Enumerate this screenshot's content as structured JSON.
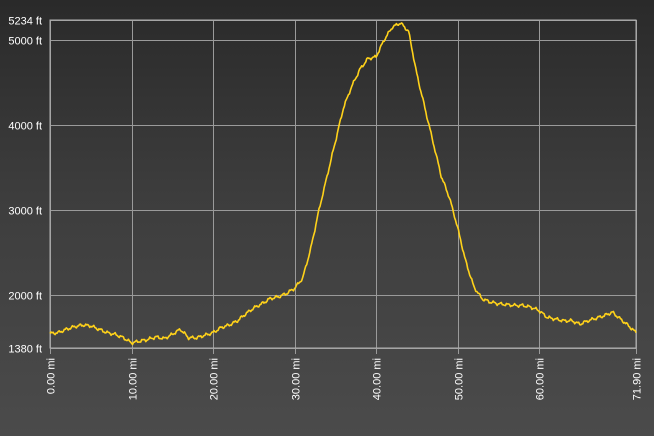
{
  "chart_data": {
    "type": "area",
    "title": "",
    "xlabel": "",
    "ylabel": "",
    "xlim": [
      0,
      71.9
    ],
    "ylim": [
      1380,
      5234
    ],
    "x_ticks": [
      {
        "value": 0,
        "label": "0.00 mi"
      },
      {
        "value": 10,
        "label": "10.00 mi"
      },
      {
        "value": 20,
        "label": "20.00 mi"
      },
      {
        "value": 30,
        "label": "30.00 mi"
      },
      {
        "value": 40,
        "label": "40.00 mi"
      },
      {
        "value": 50,
        "label": "50.00 mi"
      },
      {
        "value": 60,
        "label": "60.00 mi"
      },
      {
        "value": 71.9,
        "label": "71.90 mi"
      }
    ],
    "y_ticks": [
      {
        "value": 1380,
        "label": "1380 ft"
      },
      {
        "value": 2000,
        "label": "2000 ft"
      },
      {
        "value": 3000,
        "label": "3000 ft"
      },
      {
        "value": 4000,
        "label": "4000 ft"
      },
      {
        "value": 5000,
        "label": "5000 ft"
      },
      {
        "value": 5234,
        "label": "5234 ft"
      }
    ],
    "grid": true,
    "legend": "none",
    "colors": {
      "line": "#ffd21a",
      "grid": "#9a9a9a",
      "text": "#ffffff"
    },
    "series": [
      {
        "x": [
          0,
          1,
          2,
          3,
          4,
          5,
          6,
          7,
          8,
          9,
          10,
          11,
          12,
          13,
          14,
          15,
          16,
          17,
          18,
          19,
          20,
          21,
          22,
          23,
          24,
          25,
          26,
          27,
          28,
          29,
          30,
          31,
          32,
          33,
          34,
          35,
          36,
          37,
          38,
          39,
          40,
          41,
          42,
          43,
          44,
          45,
          46,
          47,
          48,
          49,
          50,
          51,
          52,
          53,
          54,
          55,
          56,
          57,
          58,
          59,
          60,
          61,
          62,
          63,
          64,
          65,
          66,
          67,
          68,
          69,
          70,
          71,
          71.9
        ],
        "y": [
          1550,
          1560,
          1600,
          1630,
          1650,
          1640,
          1600,
          1560,
          1540,
          1500,
          1440,
          1460,
          1480,
          1510,
          1490,
          1540,
          1600,
          1500,
          1500,
          1530,
          1560,
          1620,
          1650,
          1700,
          1780,
          1850,
          1900,
          1960,
          1980,
          2020,
          2080,
          2200,
          2550,
          3000,
          3400,
          3800,
          4200,
          4450,
          4650,
          4780,
          4800,
          5000,
          5150,
          5200,
          5100,
          4600,
          4200,
          3800,
          3400,
          3150,
          2800,
          2400,
          2100,
          1960,
          1920,
          1900,
          1890,
          1880,
          1880,
          1860,
          1820,
          1740,
          1720,
          1700,
          1700,
          1660,
          1700,
          1730,
          1760,
          1800,
          1720,
          1640,
          1560
        ]
      }
    ]
  }
}
